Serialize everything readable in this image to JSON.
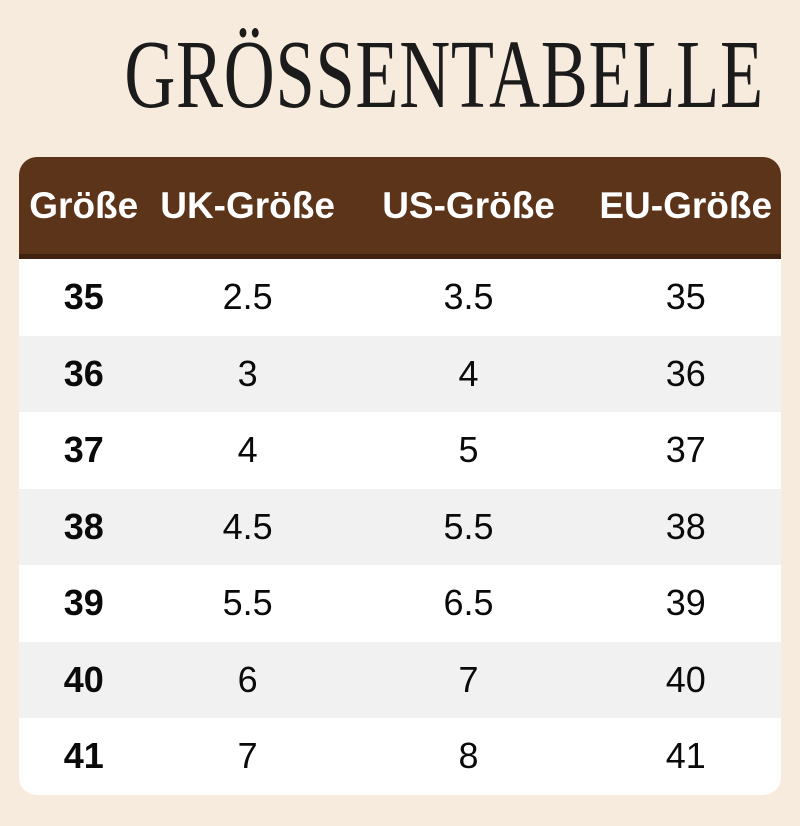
{
  "title": "GRÖSSENTABELLE",
  "colors": {
    "background": "#f7ebdd",
    "header_bar": "#5c3419",
    "header_bar_border": "#3e2410",
    "header_text": "#ffffff",
    "row_white": "#ffffff",
    "row_gray": "#f1f1f1",
    "text": "#0a0a0a"
  },
  "chart_data": {
    "type": "table",
    "title": "GRÖSSENTABELLE",
    "columns": [
      "Größe",
      "UK-Größe",
      "US-Größe",
      "EU-Größe"
    ],
    "rows": [
      [
        "35",
        "2.5",
        "3.5",
        "35"
      ],
      [
        "36",
        "3",
        "4",
        "36"
      ],
      [
        "37",
        "4",
        "5",
        "37"
      ],
      [
        "38",
        "4.5",
        "5.5",
        "38"
      ],
      [
        "39",
        "5.5",
        "6.5",
        "39"
      ],
      [
        "40",
        "6",
        "7",
        "40"
      ],
      [
        "41",
        "7",
        "8",
        "41"
      ]
    ]
  }
}
